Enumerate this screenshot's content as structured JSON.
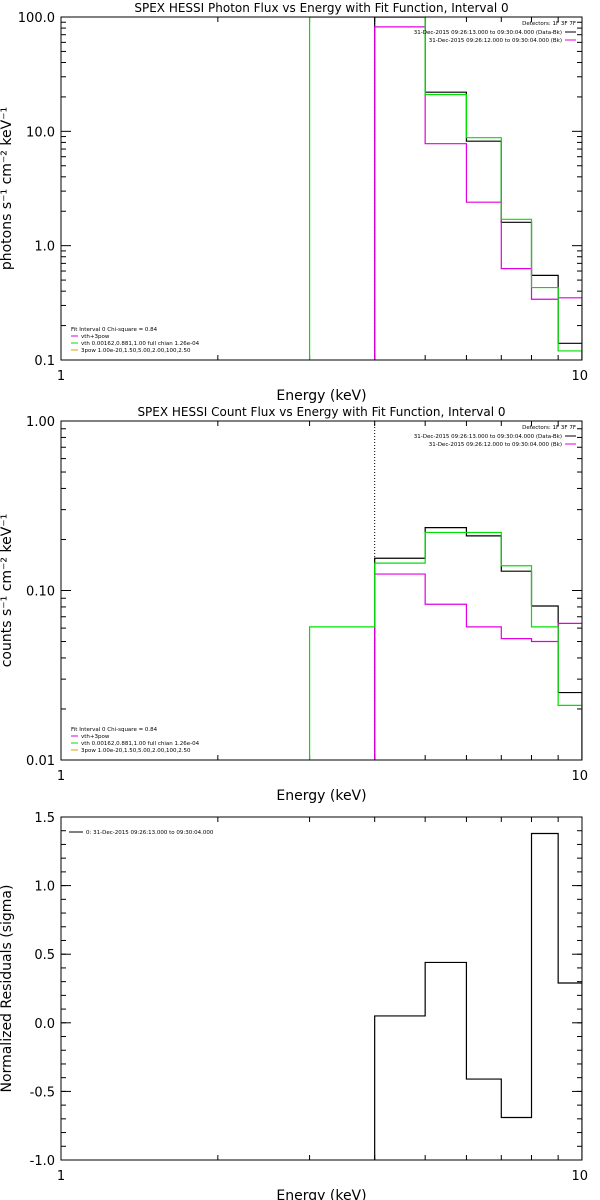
{
  "chart_data": [
    {
      "type": "line",
      "step": true,
      "title": "SPEX HESSI Photon Flux vs Energy with Fit Function, Interval 0",
      "xlabel": "Energy (keV)",
      "ylabel": "photons s⁻¹ cm⁻² keV⁻¹",
      "xscale": "log",
      "yscale": "log",
      "xlim": [
        1,
        10
      ],
      "ylim": [
        0.1,
        100
      ],
      "xticks": [
        "1",
        "10"
      ],
      "yticks": [
        "0.1",
        "1.0",
        "10.0",
        "100.0"
      ],
      "detectors": "Detectors: 1F 3F 7F",
      "legend_top": [
        {
          "text": "31-Dec-2015 09:26:13.000 to 09:30:04.000 (Data-Bk)",
          "color": "#000000"
        },
        {
          "text": "31-Dec-2015 09:26:12.000 to 09:30:04.000 (Bk)",
          "color": "#e000e0"
        }
      ],
      "legend_bottom": [
        {
          "text": "Fit Interval  0   Chi-square = 0.84",
          "color": "#000000"
        },
        {
          "text": "vth+3pow",
          "color": "#e000e0"
        },
        {
          "text": "vth 0.00162,0.881,1.00   full chian 1.26e-04",
          "color": "#00e000"
        },
        {
          "text": "3pow 1.00e-20,1.50,5.00,2.00,100,2.50",
          "color": "#e0a000"
        }
      ],
      "series": [
        {
          "name": "Data-Bk",
          "color": "#000000",
          "edges": [
            4.0,
            5.0,
            6.0,
            7.0,
            8.0,
            9.0,
            10.0
          ],
          "values": [
            100.0,
            22.0,
            8.2,
            1.6,
            0.55,
            0.14
          ]
        },
        {
          "name": "Bk",
          "color": "#e000e0",
          "edges": [
            4.0,
            5.0,
            6.0,
            7.0,
            8.0,
            9.0,
            10.0
          ],
          "values": [
            82.0,
            7.8,
            2.4,
            0.63,
            0.34,
            0.35
          ]
        },
        {
          "name": "vth",
          "color": "#00e000",
          "edges": [
            3.0,
            4.0,
            5.0,
            6.0,
            7.0,
            8.0,
            9.0,
            10.0
          ],
          "values": [
            100.0,
            100.0,
            21.0,
            8.8,
            1.7,
            0.43,
            0.12
          ]
        }
      ],
      "vlines": [
        {
          "x": 4.0,
          "color": "#000000",
          "dash": true
        }
      ]
    },
    {
      "type": "line",
      "step": true,
      "title": "SPEX HESSI Count Flux vs Energy with Fit Function, Interval 0",
      "xlabel": "Energy (keV)",
      "ylabel": "counts s⁻¹ cm⁻² keV⁻¹",
      "xscale": "log",
      "yscale": "log",
      "xlim": [
        1,
        10
      ],
      "ylim": [
        0.01,
        1
      ],
      "xticks": [
        "1",
        "10"
      ],
      "yticks": [
        "0.01",
        "0.10",
        "1.00"
      ],
      "detectors": "Detectors: 1F 3F 7F",
      "legend_top": [
        {
          "text": "31-Dec-2015 09:26:13.000 to 09:30:04.000 (Data-Bk)",
          "color": "#000000"
        },
        {
          "text": "31-Dec-2015 09:26:12.000 to 09:30:04.000 (Bk)",
          "color": "#e000e0"
        }
      ],
      "legend_bottom": [
        {
          "text": "Fit Interval  0   Chi-square = 0.84",
          "color": "#000000"
        },
        {
          "text": "vth+3pow",
          "color": "#e000e0"
        },
        {
          "text": "vth 0.00162,0.881,1.00   full chian 1.26e-04",
          "color": "#00e000"
        },
        {
          "text": "3pow 1.00e-20,1.50,5.00,2.00,100,2.50",
          "color": "#e0a000"
        }
      ],
      "series": [
        {
          "name": "Data-Bk",
          "color": "#000000",
          "edges": [
            4.0,
            5.0,
            6.0,
            7.0,
            8.0,
            9.0,
            10.0
          ],
          "values": [
            0.155,
            0.235,
            0.21,
            0.13,
            0.081,
            0.025
          ]
        },
        {
          "name": "Bk",
          "color": "#e000e0",
          "edges": [
            4.0,
            5.0,
            6.0,
            7.0,
            8.0,
            9.0,
            10.0
          ],
          "values": [
            0.125,
            0.083,
            0.061,
            0.052,
            0.05,
            0.064
          ]
        },
        {
          "name": "vth",
          "color": "#00e000",
          "edges": [
            3.0,
            4.0,
            5.0,
            6.0,
            7.0,
            8.0,
            9.0,
            10.0
          ],
          "values": [
            0.061,
            0.145,
            0.22,
            0.22,
            0.14,
            0.061,
            0.021
          ]
        }
      ],
      "vlines": [
        {
          "x": 4.0,
          "color": "#000000",
          "dash": true
        }
      ]
    },
    {
      "type": "line",
      "step": true,
      "title": "",
      "xlabel": "Energy (keV)",
      "ylabel": "Normalized Residuals (sigma)",
      "xscale": "log",
      "yscale": "linear",
      "xlim": [
        1,
        10
      ],
      "ylim": [
        -1.0,
        1.5
      ],
      "xticks": [
        "1",
        "10"
      ],
      "yticks": [
        "-1.0",
        "-0.5",
        "0.0",
        "0.5",
        "1.0",
        "1.5"
      ],
      "legend_top": [
        {
          "text": "0: 31-Dec-2015 09:26:13.000 to 09:30:04.000",
          "color": "#000000"
        }
      ],
      "series": [
        {
          "name": "0",
          "color": "#000000",
          "edges": [
            4.0,
            5.0,
            6.0,
            7.0,
            8.0,
            9.0,
            10.0
          ],
          "values": [
            0.05,
            0.44,
            -0.41,
            -0.69,
            1.38,
            0.29
          ]
        }
      ]
    }
  ]
}
